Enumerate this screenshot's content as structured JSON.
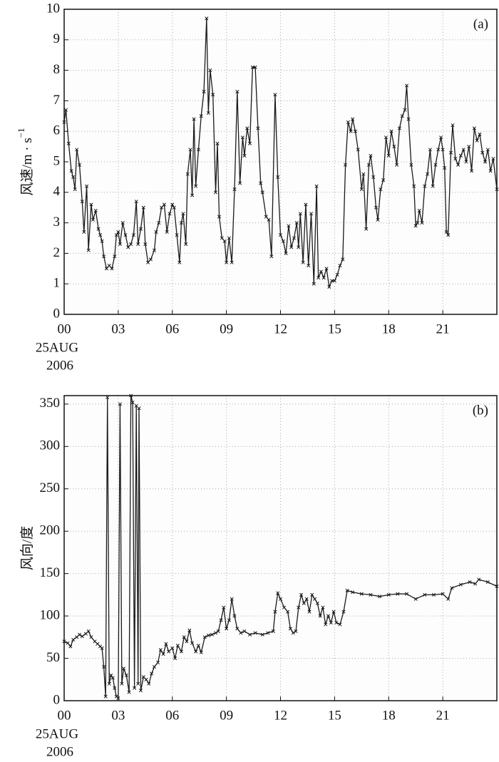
{
  "chart_data": [
    {
      "type": "line",
      "panel_label": "(a)",
      "y_label": "风速/m · s",
      "y_label_sup": "−1",
      "date_labels": [
        "25AUG",
        "2006"
      ],
      "xlim": [
        0,
        24
      ],
      "ylim": [
        0,
        10
      ],
      "grid": true,
      "xticks": [
        {
          "value": 0,
          "label": "00"
        },
        {
          "value": 3,
          "label": "03"
        },
        {
          "value": 6,
          "label": "06"
        },
        {
          "value": 9,
          "label": "09"
        },
        12,
        15,
        18,
        21
      ],
      "yticks": [
        0,
        1,
        2,
        3,
        4,
        5,
        6,
        7,
        8,
        9,
        10
      ],
      "x": [
        0,
        0.1,
        0.25,
        0.4,
        0.5,
        0.6,
        0.7,
        0.85,
        1.0,
        1.1,
        1.25,
        1.35,
        1.5,
        1.6,
        1.75,
        1.9,
        2.0,
        2.1,
        2.2,
        2.35,
        2.5,
        2.65,
        2.8,
        2.9,
        3.0,
        3.1,
        3.25,
        3.4,
        3.55,
        3.7,
        3.85,
        4.0,
        4.1,
        4.25,
        4.4,
        4.5,
        4.65,
        4.8,
        5.0,
        5.1,
        5.25,
        5.4,
        5.55,
        5.7,
        5.85,
        6.0,
        6.1,
        6.25,
        6.4,
        6.5,
        6.6,
        6.75,
        6.85,
        7.0,
        7.1,
        7.2,
        7.3,
        7.45,
        7.6,
        7.75,
        7.9,
        8.0,
        8.1,
        8.25,
        8.4,
        8.5,
        8.6,
        8.75,
        8.9,
        9.0,
        9.15,
        9.3,
        9.45,
        9.6,
        9.75,
        9.9,
        10.0,
        10.15,
        10.3,
        10.45,
        10.6,
        10.75,
        10.9,
        11.0,
        11.2,
        11.35,
        11.5,
        11.7,
        11.85,
        12.0,
        12.15,
        12.3,
        12.45,
        12.6,
        12.75,
        12.9,
        13.0,
        13.1,
        13.25,
        13.4,
        13.55,
        13.7,
        13.85,
        14.0,
        14.1,
        14.25,
        14.4,
        14.55,
        14.7,
        14.85,
        15.0,
        15.15,
        15.3,
        15.45,
        15.6,
        15.75,
        15.9,
        16.0,
        16.15,
        16.3,
        16.5,
        16.6,
        16.75,
        16.9,
        17.0,
        17.15,
        17.3,
        17.4,
        17.55,
        17.7,
        17.85,
        18.0,
        18.15,
        18.3,
        18.45,
        18.6,
        18.75,
        18.9,
        19.0,
        19.1,
        19.25,
        19.4,
        19.5,
        19.6,
        19.7,
        19.85,
        20.0,
        20.15,
        20.3,
        20.45,
        20.6,
        20.75,
        20.9,
        21.0,
        21.1,
        21.2,
        21.3,
        21.45,
        21.55,
        21.7,
        21.85,
        22.0,
        22.15,
        22.3,
        22.45,
        22.6,
        22.75,
        22.9,
        23.05,
        23.2,
        23.35,
        23.5,
        23.65,
        23.8,
        24.0
      ],
      "series": [
        {
          "color": "#1a1a1a",
          "values": [
            6.3,
            6.7,
            5.6,
            4.7,
            4.5,
            4.1,
            5.4,
            4.9,
            3.7,
            2.7,
            4.2,
            2.1,
            3.6,
            3.1,
            3.4,
            2.8,
            2.6,
            2.4,
            1.9,
            1.5,
            1.6,
            1.5,
            1.9,
            2.6,
            2.7,
            2.3,
            3.0,
            2.6,
            2.2,
            2.3,
            2.6,
            3.7,
            2.3,
            2.8,
            3.5,
            2.3,
            1.7,
            1.8,
            2.1,
            2.7,
            3.0,
            3.5,
            3.6,
            2.7,
            3.3,
            3.6,
            3.5,
            2.6,
            1.7,
            3.0,
            3.3,
            2.3,
            4.6,
            5.4,
            3.9,
            6.4,
            4.2,
            5.4,
            6.5,
            7.3,
            9.7,
            6.6,
            8.0,
            7.2,
            4.0,
            5.6,
            3.2,
            2.5,
            2.4,
            1.7,
            2.5,
            1.7,
            4.1,
            7.3,
            4.3,
            5.8,
            5.2,
            6.1,
            5.6,
            8.1,
            8.1,
            6.1,
            4.3,
            4.0,
            3.2,
            3.1,
            1.9,
            7.2,
            4.5,
            2.6,
            2.4,
            2.0,
            2.9,
            2.2,
            2.5,
            3.0,
            2.2,
            3.3,
            1.7,
            3.6,
            1.6,
            3.3,
            1.0,
            4.2,
            1.2,
            1.4,
            1.2,
            1.5,
            0.9,
            1.1,
            1.1,
            1.3,
            1.6,
            1.8,
            4.9,
            6.3,
            6.0,
            6.4,
            6.0,
            5.4,
            4.1,
            4.6,
            2.8,
            4.9,
            5.2,
            4.5,
            3.5,
            3.1,
            4.1,
            4.4,
            5.8,
            5.2,
            6.0,
            5.5,
            4.9,
            6.1,
            6.5,
            6.7,
            7.5,
            6.4,
            4.9,
            4.2,
            2.9,
            3.0,
            3.4,
            3.0,
            4.2,
            4.6,
            5.4,
            4.2,
            4.9,
            5.4,
            5.8,
            5.4,
            4.8,
            2.7,
            2.6,
            5.3,
            6.2,
            5.1,
            4.9,
            5.2,
            5.4,
            5.0,
            5.5,
            4.7,
            6.1,
            5.7,
            5.9,
            5.3,
            5.0,
            5.4,
            4.7,
            5.1,
            4.1
          ]
        }
      ]
    },
    {
      "type": "line",
      "panel_label": "(b)",
      "y_label": "风向/度",
      "date_labels": [
        "25AUG",
        "2006"
      ],
      "xlim": [
        0,
        24
      ],
      "ylim": [
        0,
        360
      ],
      "grid": true,
      "xticks": [
        {
          "value": 0,
          "label": "00"
        },
        {
          "value": 3,
          "label": "03"
        },
        {
          "value": 6,
          "label": "06"
        },
        {
          "value": 9,
          "label": "09"
        },
        12,
        15,
        18,
        21
      ],
      "yticks": [
        0,
        50,
        100,
        150,
        200,
        250,
        300,
        350
      ],
      "x": [
        0,
        0.2,
        0.35,
        0.5,
        0.7,
        0.85,
        1.0,
        1.2,
        1.35,
        1.5,
        1.7,
        1.85,
        2.0,
        2.1,
        2.2,
        2.3,
        2.4,
        2.5,
        2.6,
        2.7,
        2.8,
        2.9,
        3.0,
        3.1,
        3.2,
        3.3,
        3.45,
        3.6,
        3.7,
        3.8,
        3.9,
        4.0,
        4.1,
        4.15,
        4.25,
        4.4,
        4.55,
        4.7,
        4.85,
        5.0,
        5.2,
        5.35,
        5.5,
        5.65,
        5.8,
        6.0,
        6.15,
        6.3,
        6.5,
        6.65,
        6.8,
        6.95,
        7.1,
        7.3,
        7.45,
        7.6,
        7.8,
        8.0,
        8.2,
        8.4,
        8.55,
        8.7,
        8.85,
        9.0,
        9.15,
        9.3,
        9.45,
        9.6,
        9.8,
        10.0,
        10.3,
        10.6,
        11.0,
        11.3,
        11.6,
        11.7,
        11.85,
        12.0,
        12.2,
        12.4,
        12.55,
        12.7,
        12.85,
        13.0,
        13.15,
        13.3,
        13.45,
        13.6,
        13.75,
        13.9,
        14.05,
        14.2,
        14.35,
        14.5,
        14.65,
        14.8,
        14.95,
        15.1,
        15.3,
        15.5,
        15.7,
        16.0,
        16.5,
        17.0,
        17.5,
        18.0,
        18.5,
        19.0,
        19.5,
        20.0,
        20.5,
        21.0,
        21.3,
        21.5,
        22.0,
        22.5,
        22.8,
        23.0,
        23.5,
        24.0
      ],
      "series": [
        {
          "color": "#1a1a1a",
          "values": [
            70,
            68,
            64,
            72,
            75,
            78,
            76,
            79,
            82,
            75,
            70,
            67,
            64,
            62,
            40,
            5,
            358,
            20,
            30,
            27,
            15,
            5,
            3,
            350,
            20,
            38,
            30,
            10,
            360,
            352,
            15,
            348,
            20,
            345,
            12,
            28,
            25,
            20,
            32,
            40,
            45,
            60,
            55,
            67,
            58,
            62,
            50,
            65,
            58,
            75,
            70,
            83,
            68,
            58,
            65,
            57,
            75,
            77,
            78,
            80,
            82,
            95,
            110,
            85,
            95,
            120,
            100,
            85,
            80,
            82,
            78,
            80,
            78,
            80,
            82,
            105,
            127,
            120,
            110,
            105,
            85,
            80,
            82,
            110,
            125,
            115,
            120,
            105,
            125,
            120,
            115,
            100,
            110,
            90,
            100,
            92,
            105,
            92,
            90,
            105,
            130,
            128,
            126,
            125,
            123,
            125,
            126,
            126,
            120,
            125,
            125,
            126,
            120,
            133,
            137,
            140,
            138,
            143,
            140,
            135
          ]
        }
      ]
    }
  ]
}
